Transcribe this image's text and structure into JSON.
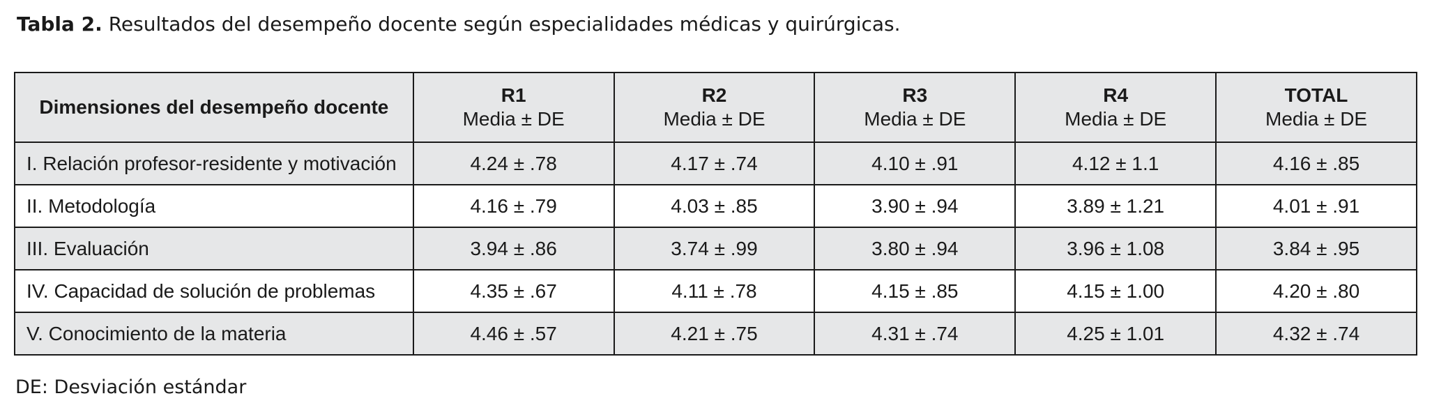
{
  "caption": {
    "lead": "Tabla 2.",
    "text": " Resultados del desempeño docente según especialidades médicas y quirúrgicas."
  },
  "table": {
    "header_first": "Dimensiones del desempeño docente",
    "columns": [
      {
        "name": "R1",
        "stat": "Media ± DE"
      },
      {
        "name": "R2",
        "stat": "Media ± DE"
      },
      {
        "name": "R3",
        "stat": "Media ± DE"
      },
      {
        "name": "R4",
        "stat": "Media ± DE"
      },
      {
        "name": "TOTAL",
        "stat": "Media ± DE"
      }
    ],
    "rows": [
      {
        "dimension": "I. Relación profesor-residente y motivación",
        "values": [
          "4.24 ± .78",
          "4.17 ± .74",
          "4.10 ± .91",
          "4.12 ± 1.1",
          "4.16 ± .85"
        ]
      },
      {
        "dimension": "II. Metodología",
        "values": [
          "4.16 ± .79",
          "4.03 ± .85",
          "3.90 ± .94",
          "3.89 ± 1.21",
          "4.01 ± .91"
        ]
      },
      {
        "dimension": "III. Evaluación",
        "values": [
          "3.94 ± .86",
          "3.74 ± .99",
          "3.80 ± .94",
          "3.96 ± 1.08",
          "3.84 ± .95"
        ]
      },
      {
        "dimension": "IV. Capacidad de solución de problemas",
        "values": [
          "4.35 ± .67",
          "4.11 ± .78",
          "4.15 ± .85",
          "4.15 ± 1.00",
          "4.20 ± .80"
        ]
      },
      {
        "dimension": "V. Conocimiento de la materia",
        "values": [
          "4.46 ± .57",
          "4.21 ± .75",
          "4.31 ± .74",
          "4.25 ± 1.01",
          "4.32 ± .74"
        ]
      }
    ]
  },
  "footnote": "DE: Desviación estándar",
  "colors": {
    "header_fill": "#e6e7e8",
    "stripe_fill": "#e6e7e8",
    "rule": "#1a1a1a"
  }
}
